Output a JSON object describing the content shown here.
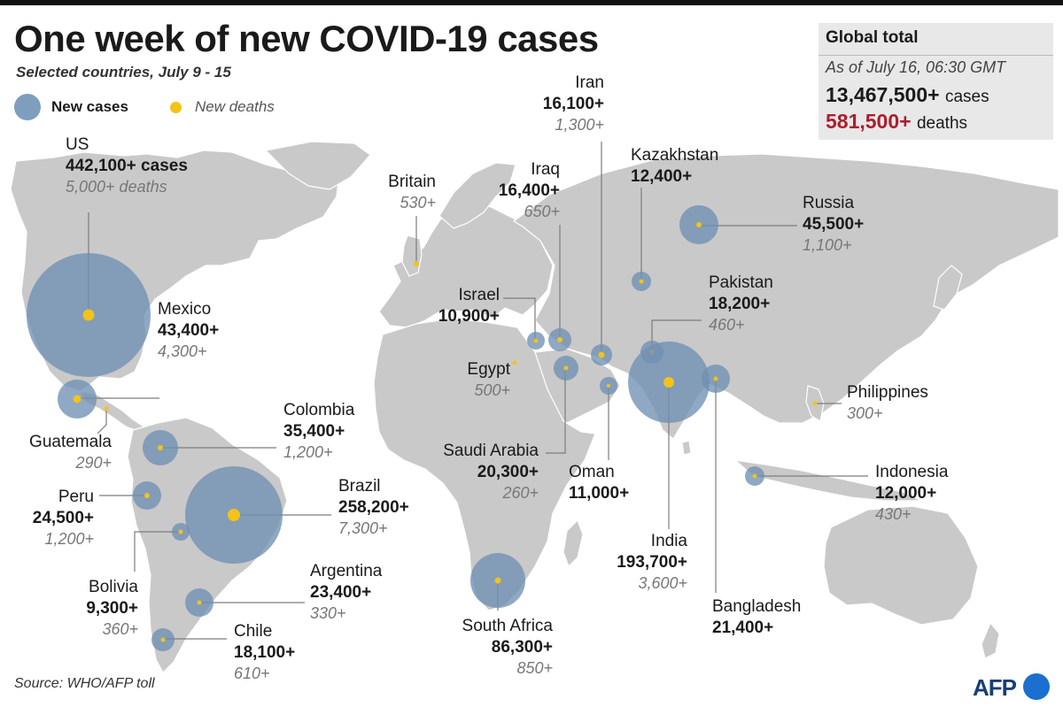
{
  "title": "One week of new COVID-19 cases",
  "subtitle": "Selected countries, July 9 - 15",
  "legend": {
    "cases_label": "New cases",
    "deaths_label": "New deaths"
  },
  "global_total": {
    "heading": "Global total",
    "as_of": "As of July 16, 06:30 GMT",
    "cases_value": "13,467,500+",
    "cases_unit": "cases",
    "deaths_value": "581,500+",
    "deaths_unit": "deaths"
  },
  "colors": {
    "bubble": "#6f8fb3",
    "dot": "#f2c318",
    "land": "#c9c9c9",
    "deaths_total": "#a8202f",
    "afp_blue": "#1a6fd1"
  },
  "countries": {
    "us": {
      "name": "US",
      "cases": "442,100+ cases",
      "deaths": "5,000+ deaths"
    },
    "mexico": {
      "name": "Mexico",
      "cases": "43,400+",
      "deaths": "4,300+"
    },
    "guatemala": {
      "name": "Guatemala",
      "deaths": "290+"
    },
    "colombia": {
      "name": "Colombia",
      "cases": "35,400+",
      "deaths": "1,200+"
    },
    "peru": {
      "name": "Peru",
      "cases": "24,500+",
      "deaths": "1,200+"
    },
    "brazil": {
      "name": "Brazil",
      "cases": "258,200+",
      "deaths": "7,300+"
    },
    "bolivia": {
      "name": "Bolivia",
      "cases": "9,300+",
      "deaths": "360+"
    },
    "argentina": {
      "name": "Argentina",
      "cases": "23,400+",
      "deaths": "330+"
    },
    "chile": {
      "name": "Chile",
      "cases": "18,100+",
      "deaths": "610+"
    },
    "britain": {
      "name": "Britain",
      "deaths": "530+"
    },
    "iran": {
      "name": "Iran",
      "cases": "16,100+",
      "deaths": "1,300+"
    },
    "iraq": {
      "name": "Iraq",
      "cases": "16,400+",
      "deaths": "650+"
    },
    "israel": {
      "name": "Israel",
      "cases": "10,900+"
    },
    "egypt": {
      "name": "Egypt",
      "deaths": "500+"
    },
    "saudi_arabia": {
      "name": "Saudi Arabia",
      "cases": "20,300+",
      "deaths": "260+"
    },
    "oman": {
      "name": "Oman",
      "cases": "11,000+"
    },
    "south_africa": {
      "name": "South Africa",
      "cases": "86,300+",
      "deaths": "850+"
    },
    "kazakhstan": {
      "name": "Kazakhstan",
      "cases": "12,400+"
    },
    "russia": {
      "name": "Russia",
      "cases": "45,500+",
      "deaths": "1,100+"
    },
    "pakistan": {
      "name": "Pakistan",
      "cases": "18,200+",
      "deaths": "460+"
    },
    "india": {
      "name": "India",
      "cases": "193,700+",
      "deaths": "3,600+"
    },
    "bangladesh": {
      "name": "Bangladesh",
      "cases": "21,400+"
    },
    "philippines": {
      "name": "Philippines",
      "deaths": "300+"
    },
    "indonesia": {
      "name": "Indonesia",
      "cases": "12,000+",
      "deaths": "430+"
    }
  },
  "source": "Source: WHO/AFP toll",
  "logo_text": "AFP"
}
